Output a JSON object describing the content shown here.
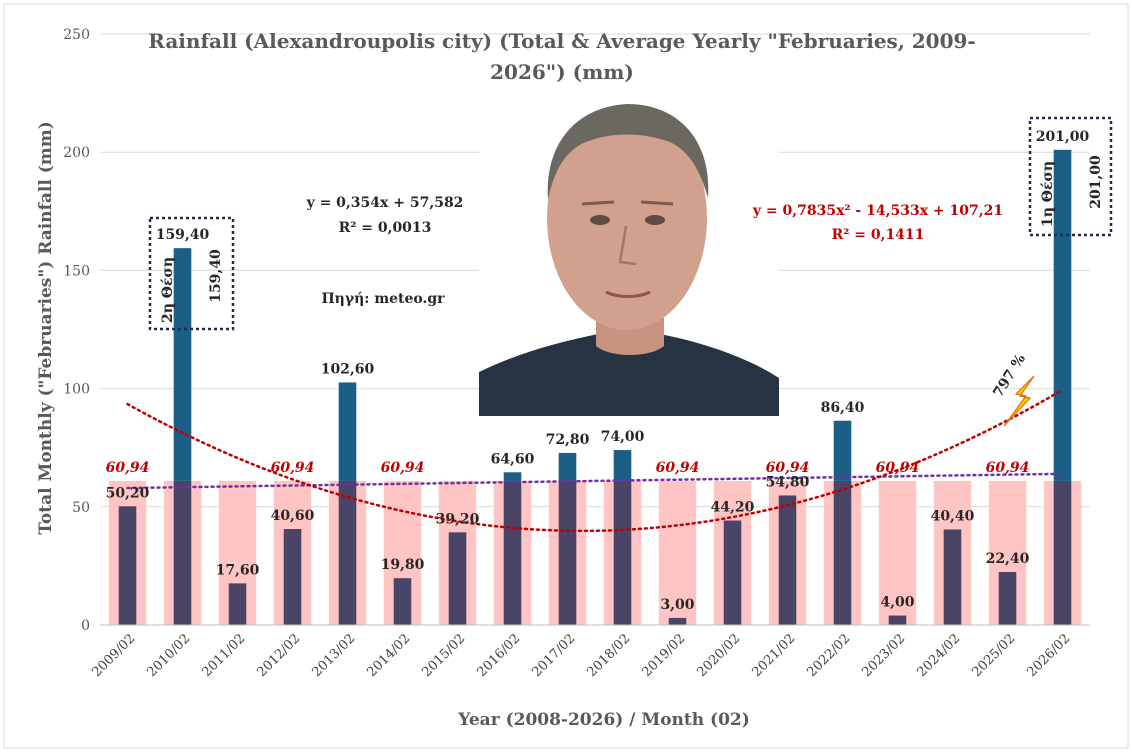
{
  "chart_data": {
    "type": "bar",
    "title_line1": "Rainfall (Alexandroupolis city) (Total & Average Yearly \"Februaries, 2009-",
    "title_line2": "2026\") (mm)",
    "xlabel": "Year (2008-2026) / Month (02)",
    "ylabel": "Total Monthly (\"Februaries\") Rainfall (mm)",
    "ylim": [
      0,
      250
    ],
    "yticks": [
      0,
      50,
      100,
      150,
      200,
      250
    ],
    "categories": [
      "2009/02",
      "2010/02",
      "2011/02",
      "2012/02",
      "2013/02",
      "2014/02",
      "2015/02",
      "2016/02",
      "2017/02",
      "2018/02",
      "2019/02",
      "2020/02",
      "2021/02",
      "2022/02",
      "2023/02",
      "2024/02",
      "2025/02",
      "2026/02"
    ],
    "series": [
      {
        "values": [
          50.2,
          159.4,
          17.6,
          40.6,
          102.6,
          19.8,
          39.2,
          64.6,
          72.8,
          74.0,
          3.0,
          44.2,
          54.8,
          86.4,
          4.0,
          40.4,
          22.4,
          201.0
        ],
        "labels": [
          "50,20",
          "159,40",
          "17,60",
          "40,60",
          "102,60",
          "19,80",
          "39,20",
          "64,60",
          "72,80",
          "74,00",
          "3,00",
          "44,20",
          "54,80",
          "86,40",
          "4,00",
          "40,40",
          "22,40",
          "201,00"
        ],
        "color": "#1b5f86",
        "below_avg_color": "#4a4466"
      },
      {
        "value": 60.94,
        "label": "60,94",
        "color": "#ffc4c4"
      }
    ],
    "avg_labels_at": [
      "2009/02",
      "2012/02",
      "2014/02",
      "2019/02",
      "2021/02",
      "2023/02",
      "2025/02"
    ],
    "trendlines": [
      {
        "kind": "linear",
        "color": "#7030a0",
        "equation": "y = 0,354x + 57,582",
        "r2": "R² = 0,0013",
        "a": 0.354,
        "b": 57.582
      },
      {
        "kind": "poly2",
        "color": "#c00000",
        "equation": "y = 0,7835x² - 14,533x + 107,21",
        "r2": "R² = 0,1411",
        "a": 0.7835,
        "b": -14.533,
        "c": 107.21
      }
    ],
    "annotations": {
      "source": "Πηγή: meteo.gr",
      "second_place_text": "2η Θέση",
      "second_place_value": "159,40",
      "first_place_text": "1η Θέση",
      "first_place_value": "201,00",
      "percent": "797 %"
    },
    "grid": true
  },
  "colors": {
    "above_bar": "#1b5f86",
    "below_bar": "#4a4466",
    "avg_bar": "#ffc4c4",
    "linear_trend": "#7030a0",
    "poly_trend": "#c00000",
    "frame": "#1f2d4d"
  }
}
